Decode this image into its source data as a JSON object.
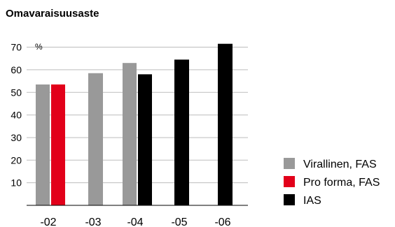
{
  "chart_data": {
    "type": "bar",
    "title": "Omavaraisuusaste",
    "unit": "%",
    "xlabel": "",
    "ylabel": "",
    "ylim": [
      0,
      70
    ],
    "yticks": [
      10,
      20,
      30,
      40,
      50,
      60,
      70
    ],
    "grid": true,
    "legend_position": "right",
    "categories": [
      "-02",
      "-03",
      "-04",
      "-05",
      "-06"
    ],
    "series": [
      {
        "name": "Virallinen, FAS",
        "color": "#999999",
        "values": [
          53.5,
          58.5,
          63,
          null,
          null
        ]
      },
      {
        "name": "Pro forma, FAS",
        "color": "#e2001a",
        "values": [
          53.5,
          null,
          null,
          null,
          null
        ]
      },
      {
        "name": "IAS",
        "color": "#000000",
        "values": [
          null,
          null,
          58,
          64.5,
          71.5
        ]
      }
    ]
  }
}
